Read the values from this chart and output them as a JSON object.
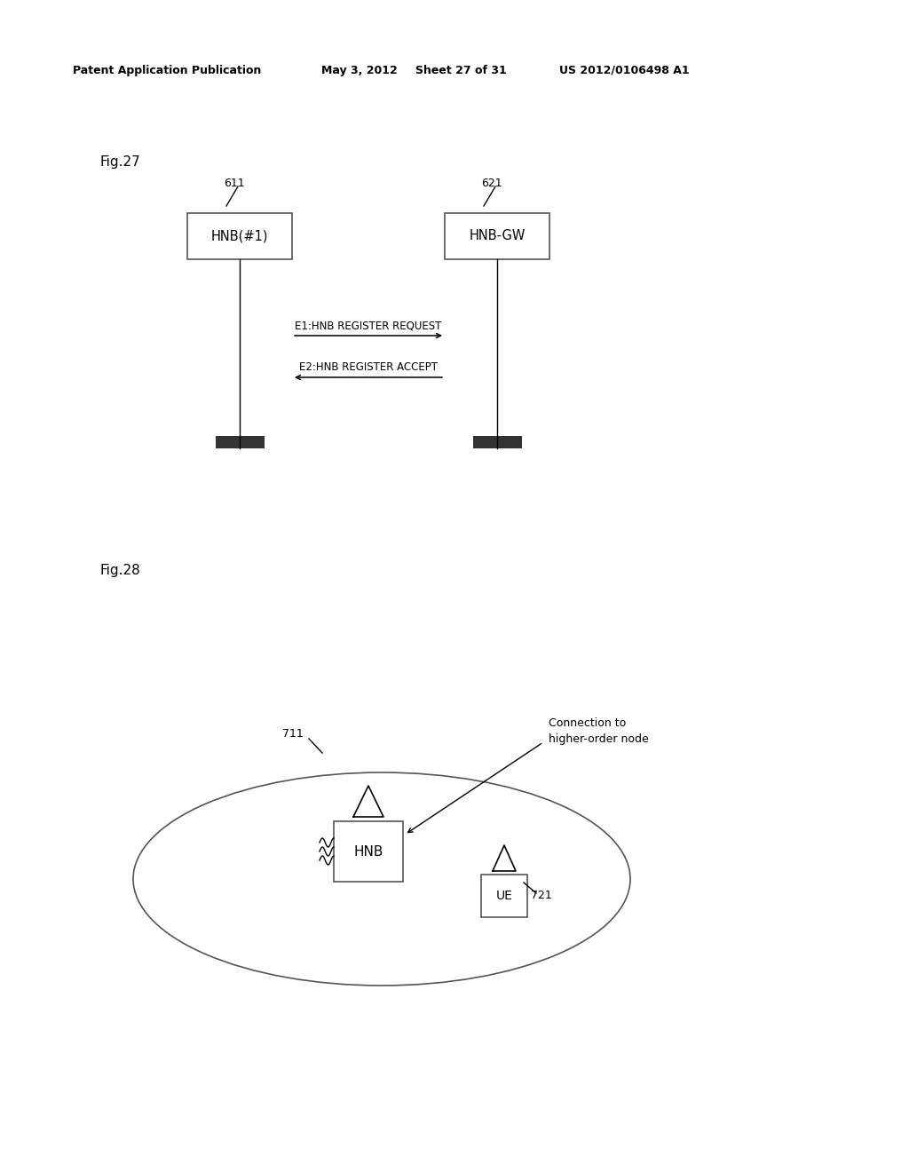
{
  "bg_color": "#ffffff",
  "header_text": "Patent Application Publication",
  "header_date": "May 3, 2012",
  "header_sheet": "Sheet 27 of 31",
  "header_patent": "US 2012/0106498 A1",
  "fig27_label": "Fig.27",
  "fig28_label": "Fig.28",
  "node611_label": "HNB(#1)",
  "node621_label": "HNB-GW",
  "label611": "611",
  "label621": "621",
  "msg_e1": "E1:HNB REGISTER REQUEST",
  "msg_e2": "E2:HNB REGISTER ACCEPT",
  "hnb_label": "HNB",
  "ue_label": "UE",
  "label711": "711",
  "label721": "721",
  "conn_label_line1": "Connection to",
  "conn_label_line2": "higher-order node"
}
